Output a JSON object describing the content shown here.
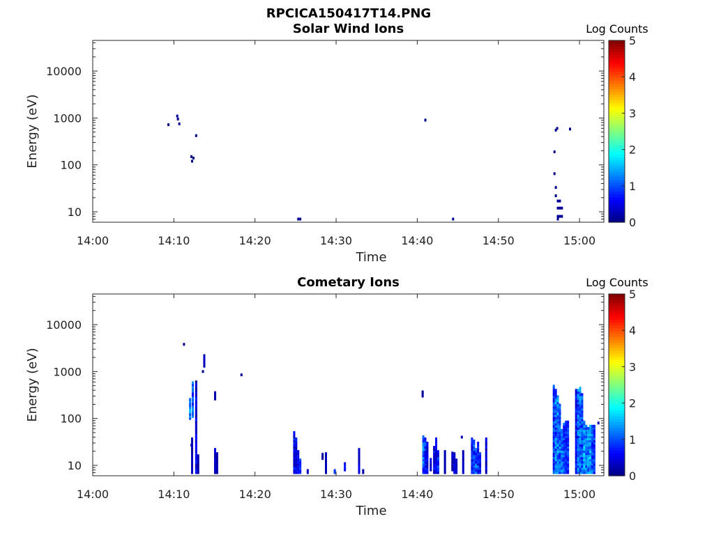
{
  "figure_title": "RPCICA150417T14.PNG",
  "chart_data": [
    {
      "type": "heatmap",
      "title": "Solar Wind Ions",
      "xlabel": "Time",
      "ylabel": "Energy (eV)",
      "x_scale": "time",
      "y_scale": "log",
      "x_ticks": [
        "14:00",
        "14:10",
        "14:20",
        "14:30",
        "14:40",
        "14:50",
        "15:00"
      ],
      "y_ticks": [
        "10",
        "100",
        "1000",
        "10000"
      ],
      "xlim": [
        "14:00",
        "15:03"
      ],
      "ylim": [
        6,
        45000
      ],
      "colorbar": {
        "label": "Log Counts",
        "ticks": [
          "0",
          "1",
          "2",
          "3",
          "4",
          "5"
        ],
        "range": [
          0,
          5
        ],
        "colormap": "jet"
      },
      "cells": [
        [
          "14:09:20",
          720,
          0.05
        ],
        [
          "14:10:25",
          1100,
          0.1
        ],
        [
          "14:10:30",
          950,
          0.1
        ],
        [
          "14:10:40",
          750,
          0.1
        ],
        [
          "14:12:10",
          150,
          0.05
        ],
        [
          "14:12:15",
          120,
          0.05
        ],
        [
          "14:12:25",
          140,
          0.05
        ],
        [
          "14:12:45",
          420,
          0.05
        ],
        [
          "14:25:20",
          7,
          0.1
        ],
        [
          "14:25:35",
          7,
          0.1
        ],
        [
          "14:41:00",
          900,
          0.05
        ],
        [
          "14:44:25",
          7,
          0.1
        ],
        [
          "14:56:55",
          190,
          0.05
        ],
        [
          "14:56:55",
          65,
          0.05
        ],
        [
          "14:57:05",
          550,
          0.05
        ],
        [
          "14:57:15",
          600,
          0.05
        ],
        [
          "14:57:05",
          33,
          0.1
        ],
        [
          "14:57:05",
          22,
          0.1
        ],
        [
          "14:57:20",
          17,
          0.1
        ],
        [
          "14:57:20",
          12,
          0.1
        ],
        [
          "14:57:20",
          8,
          0.1
        ],
        [
          "14:57:20",
          7,
          0.1
        ],
        [
          "14:57:35",
          17,
          0.1
        ],
        [
          "14:57:35",
          12,
          0.1
        ],
        [
          "14:57:35",
          8,
          0.1
        ],
        [
          "14:57:50",
          12,
          0.1
        ],
        [
          "14:57:50",
          8,
          0.1
        ],
        [
          "14:58:50",
          580,
          0.05
        ]
      ]
    },
    {
      "type": "heatmap",
      "title": "Cometary Ions",
      "xlabel": "Time",
      "ylabel": "Energy (eV)",
      "x_scale": "time",
      "y_scale": "log",
      "x_ticks": [
        "14:00",
        "14:10",
        "14:20",
        "14:30",
        "14:40",
        "14:50",
        "15:00"
      ],
      "y_ticks": [
        "10",
        "100",
        "1000",
        "10000"
      ],
      "xlim": [
        "14:00",
        "15:03"
      ],
      "ylim": [
        6,
        45000
      ],
      "colorbar": {
        "label": "Log Counts",
        "ticks": [
          "0",
          "1",
          "2",
          "3",
          "4",
          "5"
        ],
        "range": [
          0,
          5
        ],
        "colormap": "jet"
      },
      "bursts": [
        [
          "14:11:15",
          3800,
          3800,
          0.1,
          0.1
        ],
        [
          "14:12:00",
          100,
          280,
          1.7,
          0.9
        ],
        [
          "14:12:10",
          27,
          27,
          0.3,
          0.3
        ],
        [
          "14:12:15",
          7,
          40,
          0.4,
          0.1
        ],
        [
          "14:12:20",
          110,
          600,
          1.4,
          0.6
        ],
        [
          "14:12:45",
          7,
          620,
          0.8,
          0.1
        ],
        [
          "14:13:00",
          7,
          17,
          0.3,
          0.1
        ],
        [
          "14:13:35",
          1000,
          1000,
          0.1,
          0.1
        ],
        [
          "14:13:45",
          1300,
          2300,
          0.5,
          0.2
        ],
        [
          "14:15:05",
          260,
          380,
          0.3,
          0.2
        ],
        [
          "14:15:05",
          7,
          22,
          0.6,
          0.2
        ],
        [
          "14:15:20",
          7,
          18,
          0.3,
          0.1
        ],
        [
          "14:18:20",
          850,
          850,
          0.1,
          0.1
        ],
        [
          "14:24:50",
          7,
          55,
          0.9,
          0.2
        ],
        [
          "14:25:05",
          7,
          40,
          0.8,
          0.2
        ],
        [
          "14:25:20",
          7,
          20,
          0.8,
          0.3
        ],
        [
          "14:25:35",
          7,
          14,
          1.2,
          0.4
        ],
        [
          "14:26:30",
          7,
          8,
          0.4,
          0.3
        ],
        [
          "14:28:20",
          14,
          18,
          0.3,
          0.1
        ],
        [
          "14:28:45",
          7,
          18,
          0.4,
          0.2
        ],
        [
          "14:29:50",
          7,
          8,
          1.0,
          0.8
        ],
        [
          "14:31:05",
          8,
          11,
          0.8,
          0.4
        ],
        [
          "14:32:50",
          7,
          24,
          0.6,
          0.2
        ],
        [
          "14:33:20",
          7,
          8,
          0.3,
          0.2
        ],
        [
          "14:40:40",
          300,
          400,
          0.2,
          0.1
        ],
        [
          "14:40:45",
          7,
          42,
          1.5,
          0.5
        ],
        [
          "14:41:00",
          7,
          40,
          1.2,
          0.4
        ],
        [
          "14:41:15",
          7,
          30,
          0.8,
          0.2
        ],
        [
          "14:41:40",
          8,
          14,
          0.6,
          0.2
        ],
        [
          "14:42:05",
          7,
          25,
          0.9,
          0.2
        ],
        [
          "14:42:20",
          7,
          40,
          0.7,
          0.2
        ],
        [
          "14:42:35",
          7,
          20,
          1.1,
          0.3
        ],
        [
          "14:43:25",
          7,
          20,
          0.3,
          0.2
        ],
        [
          "14:44:20",
          8,
          20,
          0.4,
          0.1
        ],
        [
          "14:44:35",
          7,
          18,
          0.6,
          0.2
        ],
        [
          "14:44:50",
          7,
          14,
          0.5,
          0.2
        ],
        [
          "14:45:30",
          40,
          42,
          0.3,
          0.2
        ],
        [
          "14:45:40",
          7,
          20,
          0.4,
          0.2
        ],
        [
          "14:46:45",
          7,
          40,
          1.1,
          0.3
        ],
        [
          "14:47:00",
          7,
          35,
          1.4,
          0.5
        ],
        [
          "14:47:15",
          7,
          22,
          1.5,
          0.6
        ],
        [
          "14:47:30",
          7,
          30,
          1.3,
          0.4
        ],
        [
          "14:47:45",
          7,
          18,
          0.9,
          0.3
        ],
        [
          "14:48:30",
          7,
          38,
          0.7,
          0.1
        ],
        [
          "14:56:50",
          7,
          500,
          1.2,
          0.4
        ],
        [
          "14:57:05",
          7,
          400,
          1.6,
          0.6
        ],
        [
          "14:57:20",
          7,
          300,
          1.7,
          0.7
        ],
        [
          "14:57:35",
          7,
          200,
          1.5,
          0.6
        ],
        [
          "14:57:50",
          7,
          60,
          1.6,
          0.8
        ],
        [
          "14:58:05",
          7,
          80,
          1.3,
          0.6
        ],
        [
          "14:58:20",
          7,
          85,
          1.0,
          0.5
        ],
        [
          "14:58:35",
          7,
          85,
          1.2,
          0.5
        ],
        [
          "14:59:35",
          7,
          420,
          0.9,
          0.3
        ],
        [
          "14:59:50",
          7,
          400,
          1.5,
          0.5
        ],
        [
          "15:00:05",
          7,
          480,
          1.6,
          0.6
        ],
        [
          "15:00:20",
          7,
          350,
          1.4,
          0.6
        ],
        [
          "15:00:35",
          7,
          90,
          1.8,
          0.9
        ],
        [
          "15:00:50",
          7,
          75,
          1.5,
          0.8
        ],
        [
          "15:01:05",
          7,
          65,
          1.6,
          0.8
        ],
        [
          "15:01:20",
          7,
          70,
          1.8,
          1.0
        ],
        [
          "15:01:35",
          7,
          75,
          1.4,
          0.6
        ],
        [
          "15:01:50",
          7,
          70,
          1.2,
          0.5
        ],
        [
          "15:02:20",
          80,
          85,
          0.3,
          0.2
        ]
      ]
    }
  ]
}
